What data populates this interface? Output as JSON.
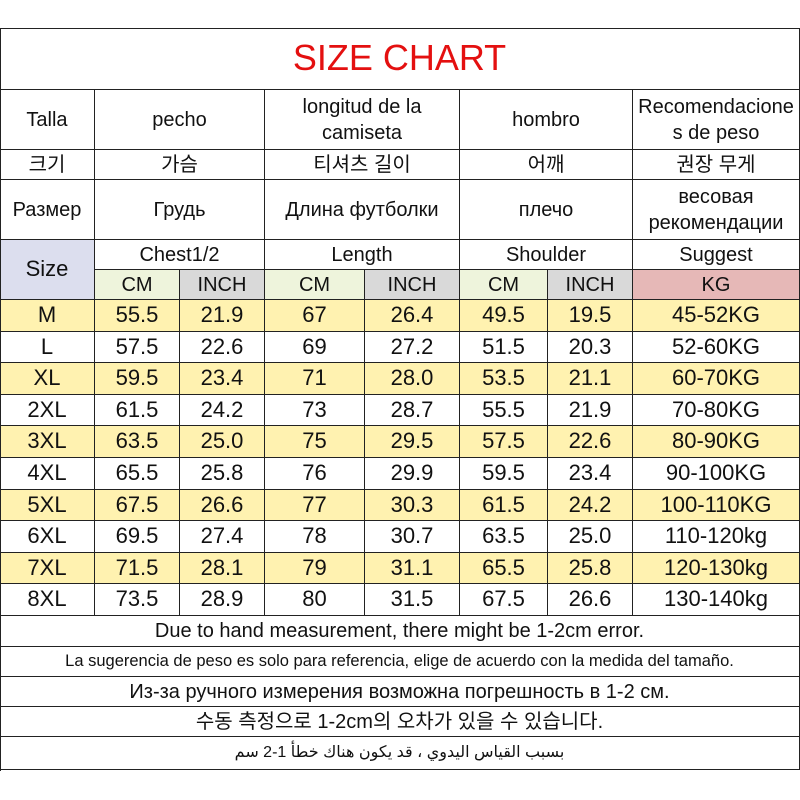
{
  "title": "SIZE CHART",
  "header": {
    "es": [
      "Talla",
      "pecho",
      "longitud de la camiseta",
      "hombro",
      "Recomendaciones de peso"
    ],
    "ko": [
      "크기",
      "가슴",
      "티셔츠 길이",
      "어깨",
      "권장 무게"
    ],
    "ru": [
      "Размер",
      "Грудь",
      "Длина футболки",
      "плечо",
      "весовая рекомендации"
    ]
  },
  "groups": {
    "size": "Size",
    "labels": [
      "Chest1/2",
      "Length",
      "Shoulder",
      "Suggest"
    ]
  },
  "units": [
    "CM",
    "INCH",
    "CM",
    "INCH",
    "CM",
    "INCH",
    "KG"
  ],
  "rows": [
    [
      "M",
      "55.5",
      "21.9",
      "67",
      "26.4",
      "49.5",
      "19.5",
      "45-52KG"
    ],
    [
      "L",
      "57.5",
      "22.6",
      "69",
      "27.2",
      "51.5",
      "20.3",
      "52-60KG"
    ],
    [
      "XL",
      "59.5",
      "23.4",
      "71",
      "28.0",
      "53.5",
      "21.1",
      "60-70KG"
    ],
    [
      "2XL",
      "61.5",
      "24.2",
      "73",
      "28.7",
      "55.5",
      "21.9",
      "70-80KG"
    ],
    [
      "3XL",
      "63.5",
      "25.0",
      "75",
      "29.5",
      "57.5",
      "22.6",
      "80-90KG"
    ],
    [
      "4XL",
      "65.5",
      "25.8",
      "76",
      "29.9",
      "59.5",
      "23.4",
      "90-100KG"
    ],
    [
      "5XL",
      "67.5",
      "26.6",
      "77",
      "30.3",
      "61.5",
      "24.2",
      "100-110KG"
    ],
    [
      "6XL",
      "69.5",
      "27.4",
      "78",
      "30.7",
      "63.5",
      "25.0",
      "110-120kg"
    ],
    [
      "7XL",
      "71.5",
      "28.1",
      "79",
      "31.1",
      "65.5",
      "25.8",
      "120-130kg"
    ],
    [
      "8XL",
      "73.5",
      "28.9",
      "80",
      "31.5",
      "67.5",
      "26.6",
      "130-140kg"
    ]
  ],
  "notes": [
    "Due to hand measurement, there might be 1-2cm error.",
    "La sugerencia de peso es solo para referencia, elige de acuerdo con la medida del tamaño.",
    "Из-за ручного измерения возможна погрешность в 1-2 см.",
    "수동 측정으로 1-2cm의 오차가 있을 수 있습니다.",
    "بسبب القياس اليدوي ، قد يكون هناك خطأ 1-2 سم"
  ]
}
